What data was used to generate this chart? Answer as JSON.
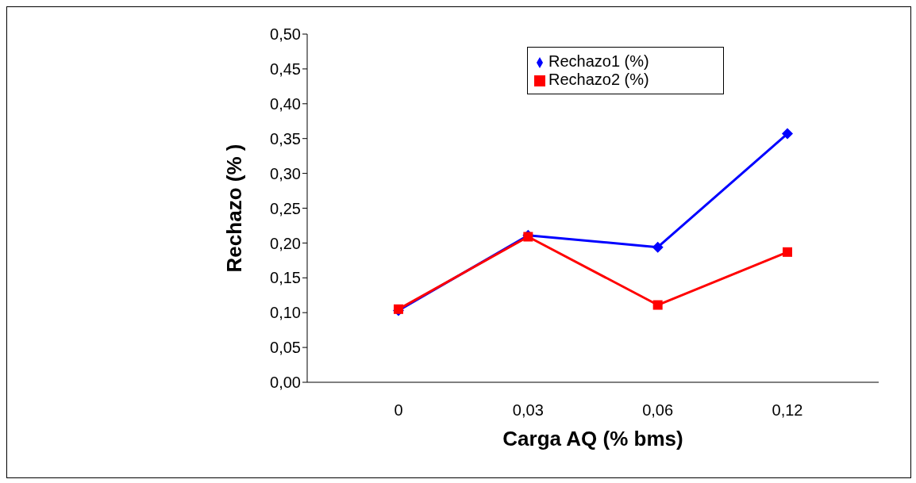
{
  "chart_data": {
    "type": "line",
    "xlabel": "Carga AQ (% bms)",
    "ylabel": "Rechazo (% )",
    "categories": [
      "0",
      "0,03",
      "0,06",
      "0,12"
    ],
    "series": [
      {
        "name": "Rechazo1 (%)",
        "color": "#0000ff",
        "marker": "diamond",
        "values": [
          0.103,
          0.211,
          0.194,
          0.357
        ]
      },
      {
        "name": "Rechazo2 (%)",
        "color": "#ff0000",
        "marker": "square",
        "values": [
          0.105,
          0.209,
          0.111,
          0.187
        ]
      }
    ],
    "ylim": [
      0,
      0.5
    ],
    "yticks": [
      {
        "value": 0,
        "label": "0,00"
      },
      {
        "value": 0.05,
        "label": "0,05"
      },
      {
        "value": 0.1,
        "label": "0,10"
      },
      {
        "value": 0.15,
        "label": "0,15"
      },
      {
        "value": 0.2,
        "label": "0,20"
      },
      {
        "value": 0.25,
        "label": "0,25"
      },
      {
        "value": 0.3,
        "label": "0,30"
      },
      {
        "value": 0.35,
        "label": "0,35"
      },
      {
        "value": 0.4,
        "label": "0,40"
      },
      {
        "value": 0.45,
        "label": "0,45"
      },
      {
        "value": 0.5,
        "label": "0,50"
      }
    ],
    "grid": false,
    "legend": "top right",
    "line_style": "solid"
  }
}
